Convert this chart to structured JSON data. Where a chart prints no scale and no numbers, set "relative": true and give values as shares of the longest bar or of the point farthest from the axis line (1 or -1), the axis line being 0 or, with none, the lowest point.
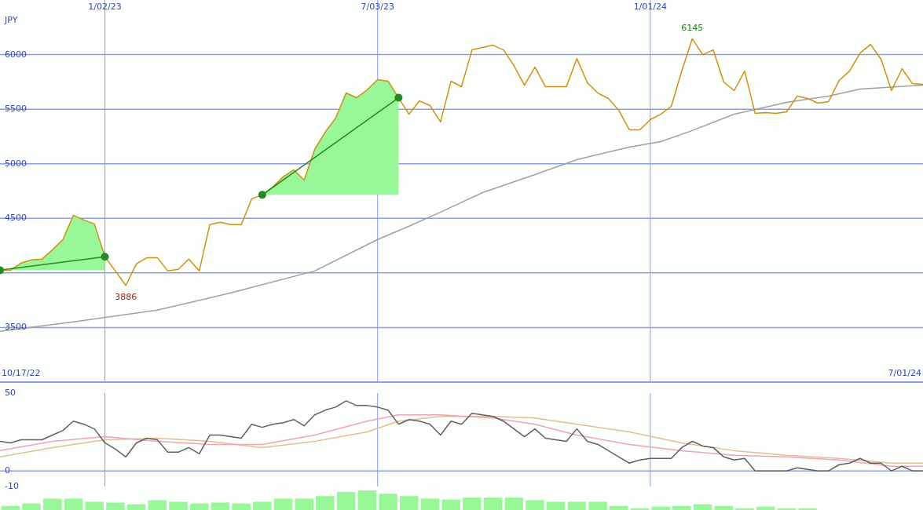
{
  "chart_data": [
    {
      "type": "line",
      "ylabel": "JPY",
      "xlim": [
        "2022-10-24",
        "2024-07-01"
      ],
      "ylim": [
        3000,
        6500
      ],
      "xticks": [
        {
          "value": "2023-01-02",
          "label": "1/02/23"
        },
        {
          "value": "2023-07-03",
          "label": "7/03/23"
        },
        {
          "value": "2024-01-01",
          "label": "1/01/24"
        }
      ],
      "yticks": [
        3500,
        {
          "value": 4000,
          "label": null
        },
        4500,
        5000,
        5500,
        6000
      ],
      "grid": true,
      "x": [
        "2022-10-24",
        "2022-10-31",
        "2022-11-07",
        "2022-11-14",
        "2022-11-21",
        "2022-11-28",
        "2022-12-05",
        "2022-12-12",
        "2022-12-19",
        "2022-12-26",
        "2023-01-02",
        "2023-01-09",
        "2023-01-16",
        "2023-01-23",
        "2023-01-30",
        "2023-02-06",
        "2023-02-13",
        "2023-02-20",
        "2023-02-27",
        "2023-03-06",
        "2023-03-13",
        "2023-03-20",
        "2023-03-27",
        "2023-04-03",
        "2023-04-10",
        "2023-04-17",
        "2023-04-24",
        "2023-05-01",
        "2023-05-08",
        "2023-05-15",
        "2023-05-22",
        "2023-05-29",
        "2023-06-05",
        "2023-06-12",
        "2023-06-19",
        "2023-06-26",
        "2023-07-03",
        "2023-07-10",
        "2023-07-17",
        "2023-07-24",
        "2023-07-31",
        "2023-08-07",
        "2023-08-14",
        "2023-08-21",
        "2023-08-28",
        "2023-09-04",
        "2023-09-11",
        "2023-09-18",
        "2023-09-25",
        "2023-10-02",
        "2023-10-09",
        "2023-10-16",
        "2023-10-23",
        "2023-10-30",
        "2023-11-06",
        "2023-11-13",
        "2023-11-20",
        "2023-11-27",
        "2023-12-04",
        "2023-12-11",
        "2023-12-18",
        "2023-12-25",
        "2024-01-01",
        "2024-01-08",
        "2024-01-15",
        "2024-01-22",
        "2024-01-29",
        "2024-02-05",
        "2024-02-12",
        "2024-02-19",
        "2024-02-26",
        "2024-03-04",
        "2024-03-11",
        "2024-03-18",
        "2024-03-25",
        "2024-04-01",
        "2024-04-08",
        "2024-04-15",
        "2024-04-22",
        "2024-04-29",
        "2024-05-06",
        "2024-05-13",
        "2024-05-20",
        "2024-05-27",
        "2024-06-03",
        "2024-06-10",
        "2024-06-17",
        "2024-06-24",
        "2024-07-01"
      ],
      "series": [
        {
          "color": "#a0a0a0",
          "x": [
            "2022-10-24",
            "2022-12-12",
            "2023-02-06",
            "2023-03-27",
            "2023-05-22",
            "2023-07-03",
            "2023-07-24",
            "2023-08-14",
            "2023-09-11",
            "2023-10-16",
            "2023-11-13",
            "2023-12-18",
            "2024-01-08",
            "2024-01-29",
            "2024-02-26",
            "2024-04-01",
            "2024-04-29",
            "2024-05-20",
            "2024-07-01"
          ],
          "values": [
            3465,
            3552,
            3659,
            3817,
            4018,
            4306,
            4428,
            4557,
            4736,
            4901,
            5038,
            5153,
            5203,
            5304,
            5454,
            5562,
            5619,
            5684,
            5720
          ]
        },
        {
          "color": "#d4900a",
          "values": [
            4025,
            4025,
            4090,
            4119,
            4126,
            4212,
            4306,
            4528,
            4485,
            4449,
            4148,
            4018,
            3886,
            4083,
            4140,
            4140,
            4018,
            4033,
            4126,
            4018,
            4442,
            4464,
            4442,
            4442,
            4679,
            4715,
            4787,
            4880,
            4945,
            4851,
            5131,
            5289,
            5418,
            5648,
            5605,
            5677,
            5770,
            5756,
            5605,
            5454,
            5576,
            5533,
            5383,
            5756,
            5706,
            6043,
            6065,
            6086,
            6043,
            5899,
            5720,
            5885,
            5706,
            5706,
            5706,
            5964,
            5742,
            5648,
            5598,
            5490,
            5311,
            5311,
            5404,
            5454,
            5526,
            5849,
            6145,
            6000,
            6043,
            5749,
            5670,
            5849,
            5461,
            5469,
            5461,
            5476,
            5619,
            5598,
            5555,
            5569,
            5763,
            5849,
            6014,
            6093,
            5957,
            5670,
            5871,
            5734,
            5727
          ]
        },
        {
          "color": "#228b22",
          "marker": "circle",
          "x": [
            "2022-10-24",
            "2023-01-02",
            "2023-02-27",
            "2023-04-17",
            "2023-07-17"
          ],
          "values": [
            4025,
            4148,
            null,
            4715,
            5605
          ]
        }
      ],
      "annotations": [
        "10/17/22",
        "7/01/24",
        {
          "text": "6145",
          "x": "2024-01-29",
          "y": 6145
        },
        {
          "text": "3886",
          "x": "2023-01-16",
          "y": 3886
        }
      ]
    },
    {
      "type": "line",
      "xlim": [
        "2022-10-24",
        "2024-07-01"
      ],
      "ylim": [
        -10,
        50
      ],
      "xticks": [
        "2023-01-02",
        "2023-07-03",
        "2024-01-01"
      ],
      "yticks": [
        -10,
        0,
        50
      ],
      "grid": "x",
      "tick_labels": "y",
      "ref_lines": [
        {
          "axis": "y",
          "value": 0,
          "color": "#8c9cf0"
        }
      ],
      "x": [
        "2022-10-24",
        "2022-10-31",
        "2022-11-07",
        "2022-11-14",
        "2022-11-21",
        "2022-11-28",
        "2022-12-05",
        "2022-12-12",
        "2022-12-19",
        "2022-12-26",
        "2023-01-02",
        "2023-01-09",
        "2023-01-16",
        "2023-01-23",
        "2023-01-30",
        "2023-02-06",
        "2023-02-13",
        "2023-02-20",
        "2023-02-27",
        "2023-03-06",
        "2023-03-13",
        "2023-03-20",
        "2023-03-27",
        "2023-04-03",
        "2023-04-10",
        "2023-04-17",
        "2023-04-24",
        "2023-05-01",
        "2023-05-08",
        "2023-05-15",
        "2023-05-22",
        "2023-05-29",
        "2023-06-05",
        "2023-06-12",
        "2023-06-19",
        "2023-06-26",
        "2023-07-03",
        "2023-07-10",
        "2023-07-17",
        "2023-07-24",
        "2023-07-31",
        "2023-08-07",
        "2023-08-14",
        "2023-08-21",
        "2023-08-28",
        "2023-09-04",
        "2023-09-11",
        "2023-09-18",
        "2023-09-25",
        "2023-10-02",
        "2023-10-09",
        "2023-10-16",
        "2023-10-23",
        "2023-10-30",
        "2023-11-06",
        "2023-11-13",
        "2023-11-20",
        "2023-11-27",
        "2023-12-04",
        "2023-12-11",
        "2023-12-18",
        "2023-12-25",
        "2024-01-01",
        "2024-01-08",
        "2024-01-15",
        "2024-01-22",
        "2024-01-29",
        "2024-02-05",
        "2024-02-12",
        "2024-02-19",
        "2024-02-26",
        "2024-03-04",
        "2024-03-11",
        "2024-03-18",
        "2024-03-25",
        "2024-04-01",
        "2024-04-08",
        "2024-04-15",
        "2024-04-22",
        "2024-04-29",
        "2024-05-06",
        "2024-05-13",
        "2024-05-20",
        "2024-05-27",
        "2024-06-03",
        "2024-06-10",
        "2024-06-17",
        "2024-06-24",
        "2024-07-01"
      ],
      "series": [
        {
          "color": "#e0c090",
          "x": [
            "2022-10-24",
            "2022-11-28",
            "2023-01-02",
            "2023-02-06",
            "2023-03-13",
            "2023-04-17",
            "2023-05-22",
            "2023-06-26",
            "2023-07-17",
            "2023-08-14",
            "2023-09-18",
            "2023-10-16",
            "2023-11-13",
            "2023-12-18",
            "2024-01-22",
            "2024-02-26",
            "2024-04-01",
            "2024-05-06",
            "2024-06-10",
            "2024-07-01"
          ],
          "values": [
            9,
            15,
            20,
            21,
            19,
            15,
            19,
            25,
            32,
            35,
            35,
            34,
            30,
            25,
            18,
            13,
            10,
            8,
            5,
            5
          ]
        },
        {
          "color": "#f4a0b8",
          "x": [
            "2022-10-24",
            "2022-11-28",
            "2023-01-02",
            "2023-02-06",
            "2023-03-13",
            "2023-04-17",
            "2023-05-22",
            "2023-06-26",
            "2023-07-17",
            "2023-08-14",
            "2023-09-18",
            "2023-10-16",
            "2023-11-13",
            "2023-12-18",
            "2024-01-22",
            "2024-02-26",
            "2024-04-01",
            "2024-05-06",
            "2024-06-10",
            "2024-07-01"
          ],
          "values": [
            13,
            19,
            22,
            19,
            17,
            17,
            23,
            32,
            36,
            36,
            34,
            30,
            23,
            17,
            13,
            10,
            9,
            7,
            3,
            3
          ]
        },
        {
          "color": "#606060",
          "values": [
            19,
            18,
            20,
            20,
            20,
            23,
            26,
            32,
            30,
            27,
            18,
            14,
            9,
            18,
            21,
            20,
            12,
            12,
            15,
            11,
            23,
            23,
            22,
            21,
            30,
            28,
            30,
            31,
            33,
            29,
            36,
            39,
            41,
            45,
            42,
            42,
            41,
            39,
            30,
            33,
            32,
            30,
            23,
            32,
            30,
            37,
            36,
            35,
            32,
            27,
            22,
            27,
            21,
            20,
            19,
            27,
            19,
            17,
            13,
            9,
            5,
            7,
            8,
            8,
            8,
            15,
            19,
            16,
            15,
            9,
            7,
            8,
            0,
            0,
            0,
            0,
            2,
            1,
            0,
            0,
            4,
            5,
            8,
            5,
            5,
            0,
            3,
            0,
            0
          ]
        }
      ]
    },
    {
      "type": "bar",
      "relative": true,
      "color": "#98f898",
      "xlim": [
        "2022-10-24",
        "2024-07-01"
      ],
      "x": [
        "2022-10-31",
        "2022-11-14",
        "2022-11-28",
        "2022-12-12",
        "2022-12-26",
        "2023-01-09",
        "2023-01-23",
        "2023-02-06",
        "2023-02-20",
        "2023-03-06",
        "2023-03-20",
        "2023-04-03",
        "2023-04-17",
        "2023-05-01",
        "2023-05-15",
        "2023-05-29",
        "2023-06-12",
        "2023-06-26",
        "2023-07-10",
        "2023-07-24",
        "2023-08-07",
        "2023-08-21",
        "2023-09-04",
        "2023-09-18",
        "2023-10-02",
        "2023-10-16",
        "2023-10-30",
        "2023-11-13",
        "2023-11-27",
        "2023-12-11",
        "2023-12-25",
        "2024-01-08",
        "2024-01-22",
        "2024-02-05",
        "2024-02-19",
        "2024-03-04",
        "2024-03-18",
        "2024-04-01",
        "2024-04-15"
      ],
      "values": [
        0.21,
        0.33,
        0.58,
        0.58,
        0.42,
        0.38,
        0.29,
        0.5,
        0.42,
        0.33,
        0.38,
        0.33,
        0.42,
        0.58,
        0.58,
        0.71,
        0.92,
        1,
        0.83,
        0.71,
        0.58,
        0.54,
        0.63,
        0.63,
        0.63,
        0.5,
        0.42,
        0.42,
        0.42,
        0.21,
        0.08,
        0.17,
        0.21,
        0.29,
        0.21,
        0.08,
        0.17,
        0.08,
        0.08
      ]
    }
  ]
}
